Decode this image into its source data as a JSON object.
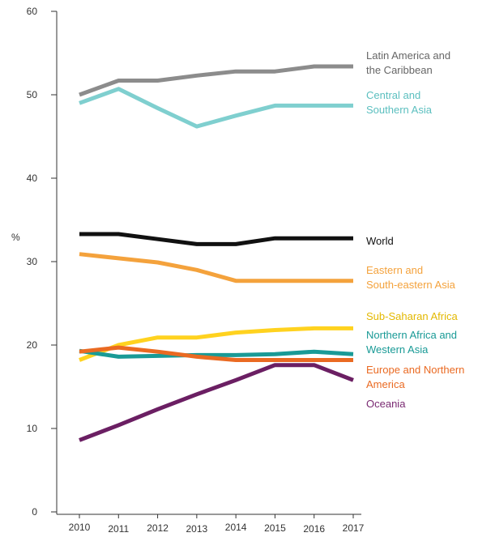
{
  "chart_data": {
    "type": "line",
    "title": "",
    "xlabel": "",
    "ylabel": "%",
    "x": [
      2010,
      2011,
      2012,
      2013,
      2014,
      2015,
      2016,
      2017
    ],
    "ylim": [
      0,
      60
    ],
    "yticks": [
      0,
      10,
      20,
      30,
      40,
      50,
      60
    ],
    "grid": false,
    "legend": "direct labels at right end of lines",
    "series": [
      {
        "name": "Latin America and the Caribbean",
        "label_lines": [
          "Latin America and",
          "the Caribbean"
        ],
        "color": "#8c8c8c",
        "text_color": "#666666",
        "values": [
          50.0,
          51.7,
          51.7,
          52.3,
          52.8,
          52.8,
          53.4,
          53.4
        ]
      },
      {
        "name": "Central and Southern Asia",
        "label_lines": [
          "Central and",
          "Southern Asia"
        ],
        "color": "#7fcfcf",
        "text_color": "#5bbfbf",
        "values": [
          49.0,
          50.7,
          48.4,
          46.2,
          47.5,
          48.7,
          48.7,
          48.7
        ]
      },
      {
        "name": "World",
        "label_lines": [
          "World"
        ],
        "color": "#111111",
        "text_color": "#111111",
        "values": [
          33.3,
          33.3,
          32.7,
          32.1,
          32.1,
          32.8,
          32.8,
          32.8
        ]
      },
      {
        "name": "Eastern and South-eastern Asia",
        "label_lines": [
          "Eastern and",
          "South-eastern Asia"
        ],
        "color": "#f4a23c",
        "text_color": "#f4a23c",
        "values": [
          30.9,
          30.4,
          29.9,
          29.0,
          27.7,
          27.7,
          27.7,
          27.7
        ]
      },
      {
        "name": "Sub-Saharan Africa",
        "label_lines": [
          "Sub-Saharan Africa"
        ],
        "color": "#ffd21f",
        "text_color": "#e3b800",
        "values": [
          18.2,
          20.0,
          20.9,
          20.9,
          21.5,
          21.8,
          22.0,
          22.0
        ]
      },
      {
        "name": "Northern Africa and Western Asia",
        "label_lines": [
          "Northern Africa and",
          "Western Asia"
        ],
        "color": "#199a96",
        "text_color": "#199a96",
        "values": [
          19.3,
          18.6,
          18.7,
          18.8,
          18.8,
          18.9,
          19.2,
          18.9
        ]
      },
      {
        "name": "Europe and Northern America",
        "label_lines": [
          "Europe and Northern",
          "America"
        ],
        "color": "#ea6a22",
        "text_color": "#ea6a22",
        "values": [
          19.2,
          19.7,
          19.2,
          18.6,
          18.2,
          18.2,
          18.2,
          18.2
        ]
      },
      {
        "name": "Oceania",
        "label_lines": [
          "Oceania"
        ],
        "color": "#6b1f63",
        "text_color": "#7a2a72",
        "values": [
          8.6,
          10.4,
          12.3,
          14.1,
          15.8,
          17.6,
          17.6,
          15.8
        ]
      }
    ]
  }
}
